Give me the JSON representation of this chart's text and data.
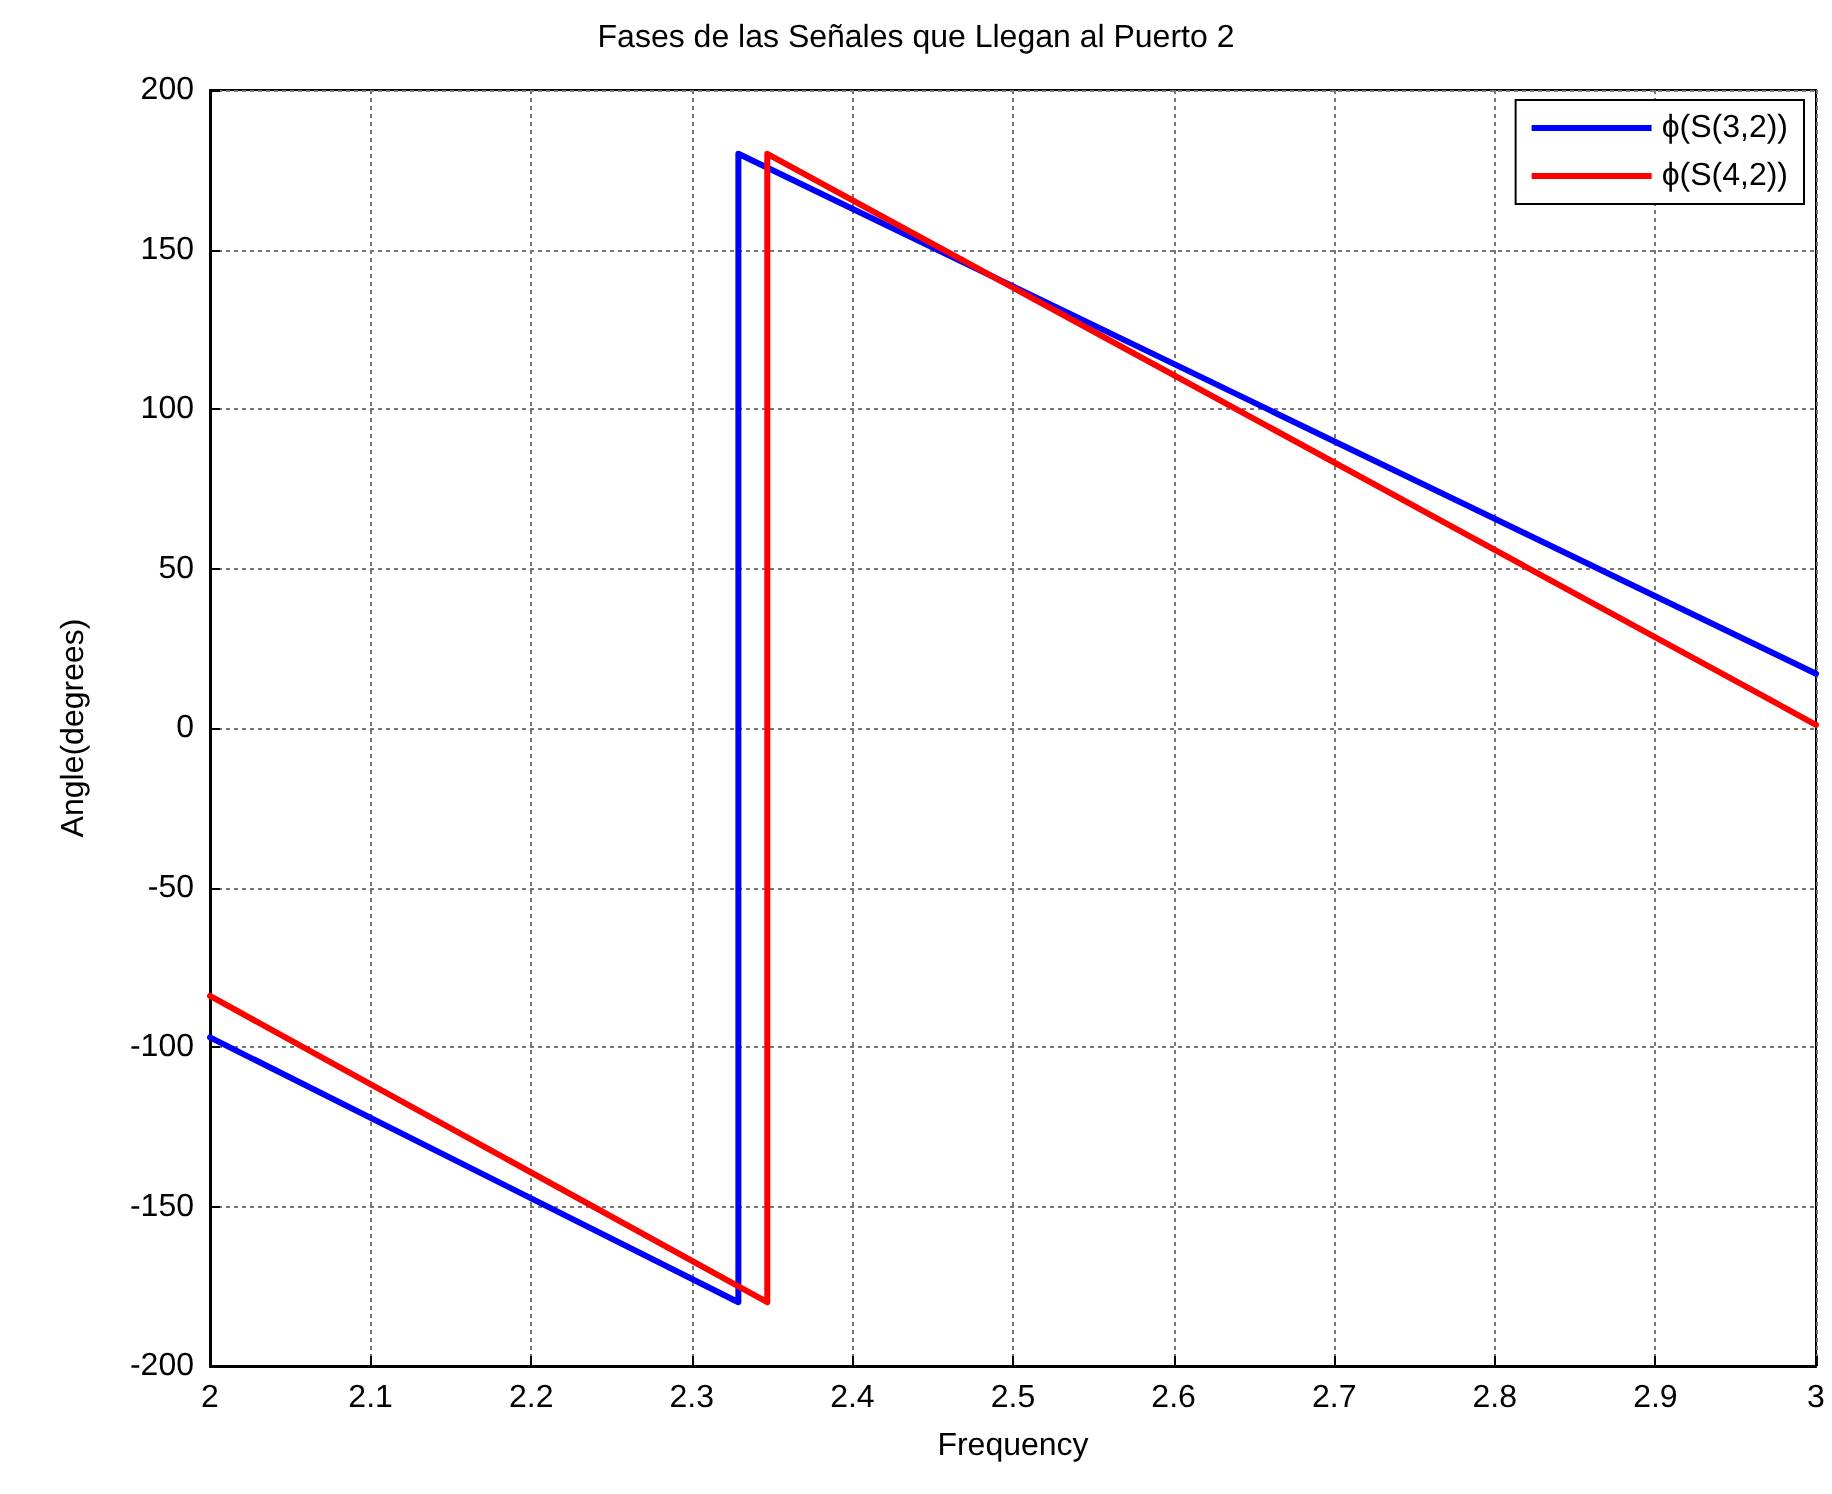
{
  "chart_data": {
    "type": "line",
    "title": "Fases de las Señales que Llegan al Puerto 2",
    "xlabel": "Frequency",
    "ylabel": "Angle(degrees)",
    "xlim": [
      2,
      3
    ],
    "xticks": [
      2,
      2.1,
      2.2,
      2.3,
      2.4,
      2.5,
      2.6,
      2.7,
      2.8,
      2.9,
      3
    ],
    "ylim": [
      -200,
      200
    ],
    "yticks": [
      -200,
      -150,
      -100,
      -50,
      0,
      50,
      100,
      150,
      200
    ],
    "grid": true,
    "legend": "top right",
    "marker": "none",
    "line_style": "solid",
    "series": [
      {
        "name": "ϕ(S(3,2))",
        "color": "#0000ff",
        "x": [
          2,
          2.329,
          2.329,
          3
        ],
        "values": [
          -97,
          -180,
          180,
          17
        ]
      },
      {
        "name": "ϕ(S(4,2))",
        "color": "#ff0000",
        "x": [
          2,
          2.347,
          2.347,
          3
        ],
        "values": [
          -84,
          -180,
          180,
          1
        ]
      }
    ]
  }
}
